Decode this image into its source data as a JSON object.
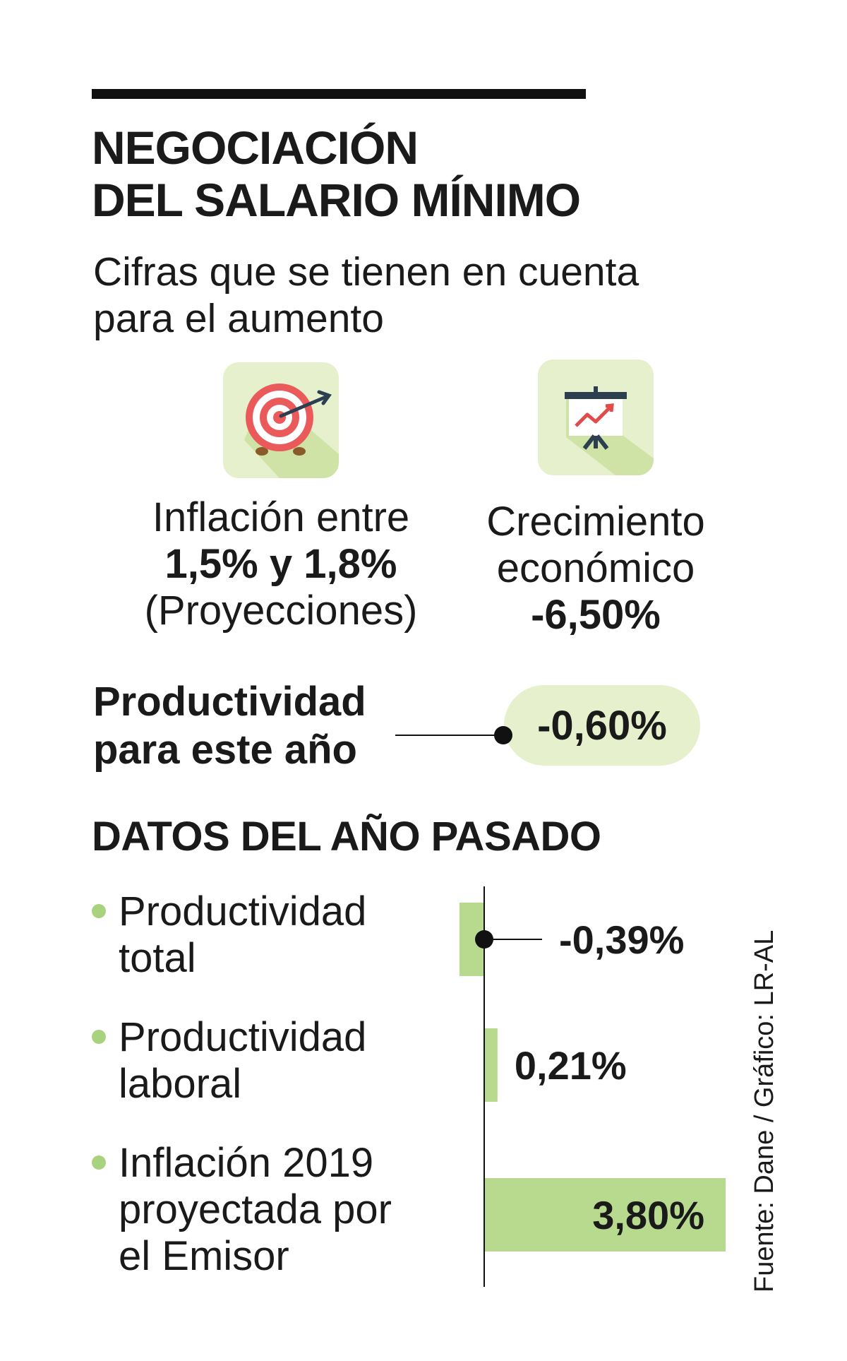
{
  "title_lines": [
    "NEGOCIACIÓN",
    "DEL SALARIO MÍNIMO"
  ],
  "subtitle_lines": [
    "Cifras que se tienen en cuenta",
    "para el aumento"
  ],
  "icons": {
    "left": "target-icon",
    "right": "growth-chart-icon"
  },
  "kpi_inflation": {
    "line1": "Inflación entre",
    "value": "1,5% y 1,8%",
    "line3": "(Proyecciones)"
  },
  "kpi_growth": {
    "line1": "Crecimiento",
    "line2": "económico",
    "value": "-6,50%"
  },
  "productivity": {
    "label_line1": "Productividad",
    "label_line2": "para este año",
    "value": "-0,60%"
  },
  "section_title": "DATOS DEL AÑO PASADO",
  "rows": [
    {
      "lines": [
        "Productividad",
        "total"
      ]
    },
    {
      "lines": [
        "Productividad",
        "laboral"
      ]
    },
    {
      "lines": [
        "Inflación 2019",
        "proyectada por",
        "el Emisor"
      ]
    }
  ],
  "source": "Fuente: Dane / Gráfico: LR-AL",
  "colors": {
    "accent_green": "#b8da8f",
    "pill_green": "#e6f0cc",
    "bullet_green": "#a9d27f",
    "ink": "#111111"
  },
  "chart_data": {
    "type": "bar",
    "orientation": "horizontal",
    "title": "DATOS DEL AÑO PASADO",
    "categories": [
      "Productividad total",
      "Productividad laboral",
      "Inflación 2019 proyectada por el Emisor"
    ],
    "values": [
      -0.39,
      0.21,
      3.8
    ],
    "value_labels": [
      "-0,39%",
      "0,21%",
      "3,80%"
    ],
    "unit": "%"
  }
}
